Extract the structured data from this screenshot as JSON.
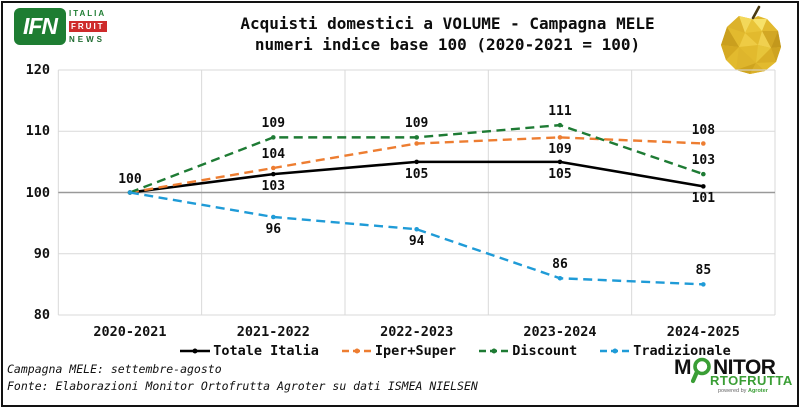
{
  "logo_ifn": {
    "ifn": "IFN",
    "italia": "ITALIA",
    "fruit": "FRUIT",
    "news": "NEWS"
  },
  "title": {
    "line1": "Acquisti domestici a VOLUME - Campagna MELE",
    "line2": "numeri indice base 100 (2020-2021 = 100)"
  },
  "chart_data": {
    "type": "line",
    "categories": [
      "2020-2021",
      "2021-2022",
      "2022-2023",
      "2023-2024",
      "2024-2025"
    ],
    "series": [
      {
        "name": "Totale Italia",
        "color": "#000000",
        "dash": "solid",
        "values": [
          100,
          103,
          105,
          105,
          101
        ],
        "labels": [
          "100",
          "103",
          "105",
          "105",
          "101"
        ],
        "label_pos": [
          "above",
          "below",
          "below",
          "below",
          "below"
        ]
      },
      {
        "name": "Iper+Super",
        "color": "#ED7D31",
        "dash": "dashed",
        "values": [
          100,
          104,
          108,
          109,
          108
        ],
        "labels": [
          null,
          "104",
          null,
          "109",
          "108"
        ],
        "label_pos": [
          null,
          "above",
          null,
          "below",
          "above"
        ]
      },
      {
        "name": "Discount",
        "color": "#1E7B34",
        "dash": "dashed",
        "values": [
          100,
          109,
          109,
          111,
          103
        ],
        "labels": [
          null,
          "109",
          "109",
          "111",
          "103"
        ],
        "label_pos": [
          null,
          "above",
          "above",
          "above",
          "above"
        ]
      },
      {
        "name": "Tradizionale",
        "color": "#1F9BD7",
        "dash": "dashed",
        "values": [
          100,
          96,
          94,
          86,
          85
        ],
        "labels": [
          null,
          "96",
          "94",
          "86",
          "85"
        ],
        "label_pos": [
          null,
          "below",
          "below",
          "above",
          "above"
        ]
      }
    ],
    "ylim": [
      80,
      120
    ],
    "yticks": [
      80,
      90,
      100,
      110,
      120
    ],
    "baseline": 100,
    "grid": true,
    "legend_position": "bottom"
  },
  "footer": {
    "line1": "Campagna MELE: settembre-agosto",
    "line2": "Fonte: Elaborazioni Monitor Ortofrutta Agroter su dati ISMEA NIELSEN"
  },
  "monitor_logo": {
    "m": "M",
    "nitor": "NITOR",
    "rtofrutta": "RTOFRUTTA",
    "powered_by": "powered by ",
    "agroter": "Agroter"
  },
  "icons": {
    "apple": "low-poly-yellow-apple",
    "magnifier": "green-magnifying-glass"
  },
  "colors": {
    "ifn_green": "#1E7D32",
    "ifn_red": "#CE2B2B",
    "monitor_green": "#3A9E35",
    "apple_yellow": "#E8C53C",
    "grid_light": "#d9d9d9",
    "baseline_gray": "#999999"
  }
}
